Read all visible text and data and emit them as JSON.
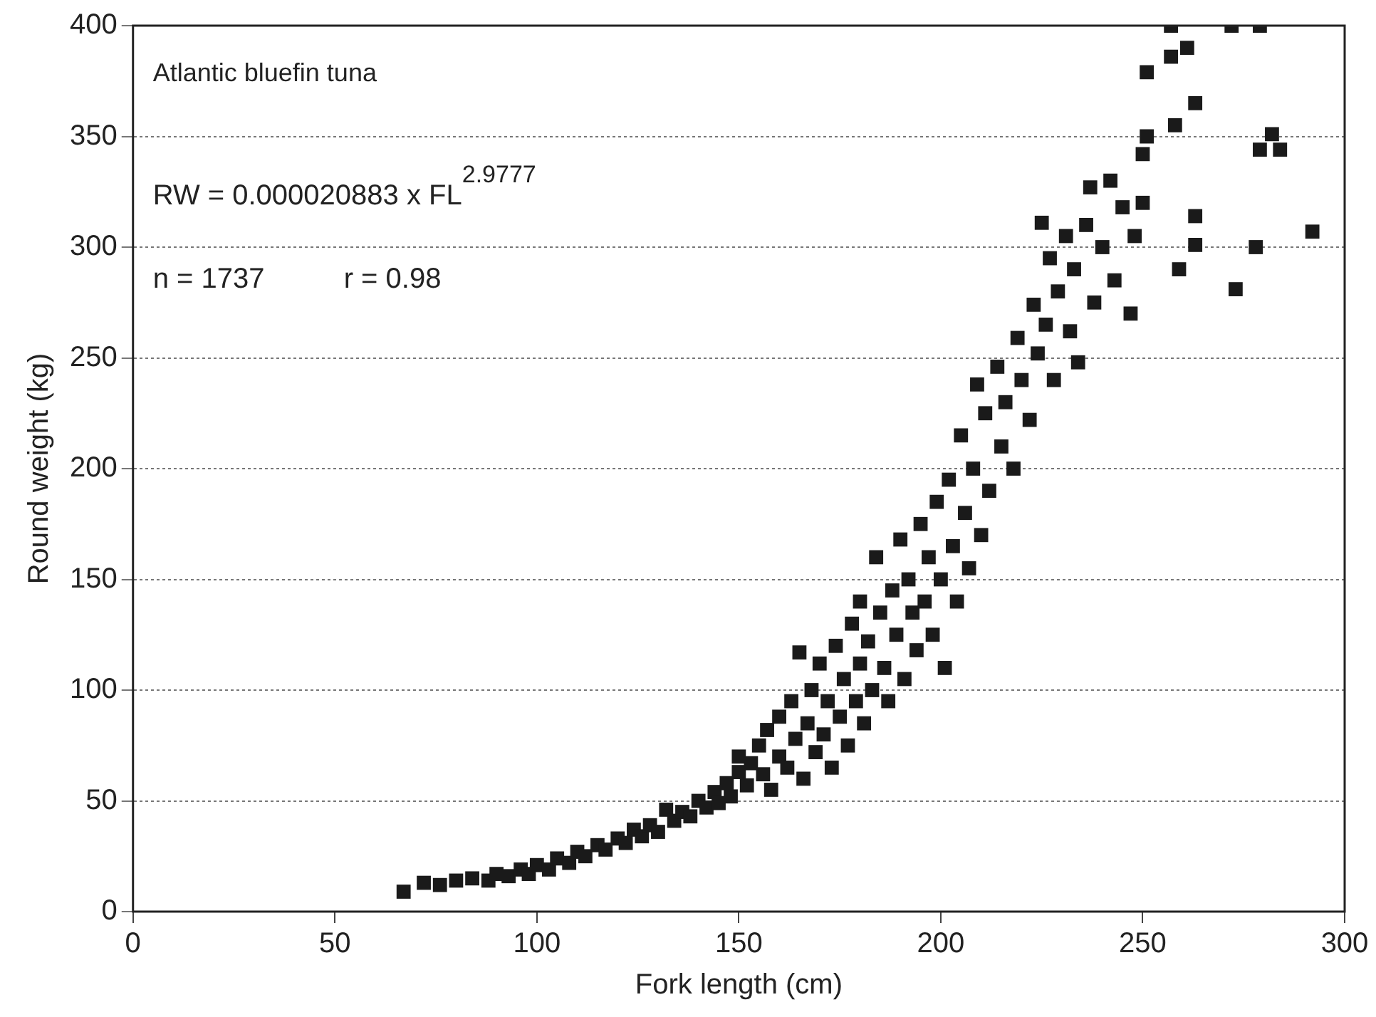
{
  "chart_data": {
    "type": "scatter",
    "xlabel": "Fork length (cm)",
    "ylabel": "Round weight (kg)",
    "annotations": [
      "Atlantic bluefin tuna",
      "RW = 0.000020883 x FL$^{2.9777}$",
      "n = 1737          r = 0.98"
    ],
    "xlim": [
      0,
      300
    ],
    "xticks": [
      0,
      50,
      100,
      150,
      200,
      250,
      300
    ],
    "ylim": [
      0,
      400
    ],
    "yticks": [
      0,
      50,
      100,
      150,
      200,
      250,
      300,
      350,
      400
    ],
    "grid": "y",
    "marker": "square",
    "legend": false,
    "series": [
      {
        "color": "#1a1a1a",
        "x": [
          67,
          72,
          76,
          80,
          84,
          88,
          90,
          93,
          96,
          98,
          100,
          103,
          105,
          108,
          110,
          112,
          115,
          117,
          120,
          122,
          124,
          126,
          128,
          130,
          132,
          134,
          136,
          138,
          140,
          142,
          144,
          145,
          147,
          148,
          150,
          150,
          152,
          153,
          155,
          156,
          157,
          158,
          160,
          160,
          162,
          163,
          164,
          165,
          166,
          167,
          168,
          169,
          170,
          171,
          172,
          173,
          174,
          175,
          176,
          177,
          178,
          179,
          180,
          180,
          181,
          182,
          183,
          184,
          185,
          186,
          187,
          188,
          189,
          190,
          191,
          192,
          193,
          194,
          195,
          196,
          197,
          198,
          199,
          200,
          201,
          202,
          203,
          204,
          205,
          206,
          207,
          208,
          209,
          210,
          211,
          212,
          214,
          215,
          216,
          218,
          219,
          220,
          222,
          223,
          224,
          225,
          226,
          227,
          228,
          229,
          231,
          232,
          233,
          234,
          236,
          237,
          238,
          240,
          242,
          243,
          245,
          247,
          248,
          250,
          250,
          251,
          251,
          257,
          258,
          259,
          261,
          263,
          263,
          263,
          257,
          272,
          279,
          273,
          278,
          279,
          282,
          284,
          292
        ],
        "values": [
          9,
          13,
          12,
          14,
          15,
          14,
          17,
          16,
          19,
          17,
          21,
          19,
          24,
          22,
          27,
          25,
          30,
          28,
          33,
          31,
          37,
          34,
          39,
          36,
          46,
          41,
          45,
          43,
          50,
          47,
          54,
          49,
          58,
          52,
          63,
          70,
          57,
          67,
          75,
          62,
          82,
          55,
          70,
          88,
          65,
          95,
          78,
          117,
          60,
          85,
          100,
          72,
          112,
          80,
          95,
          65,
          120,
          88,
          105,
          75,
          130,
          95,
          112,
          140,
          85,
          122,
          100,
          160,
          135,
          110,
          95,
          145,
          125,
          168,
          105,
          150,
          135,
          118,
          175,
          140,
          160,
          125,
          185,
          150,
          110,
          195,
          165,
          140,
          215,
          180,
          155,
          200,
          238,
          170,
          225,
          190,
          246,
          210,
          230,
          200,
          259,
          240,
          222,
          274,
          252,
          311,
          265,
          295,
          240,
          280,
          305,
          262,
          290,
          248,
          310,
          327,
          275,
          300,
          330,
          285,
          318,
          270,
          305,
          342,
          320,
          350,
          379,
          386,
          355,
          290,
          390,
          365,
          314,
          301,
          400,
          400,
          400,
          281,
          300,
          344,
          351,
          344,
          307
        ]
      }
    ]
  }
}
